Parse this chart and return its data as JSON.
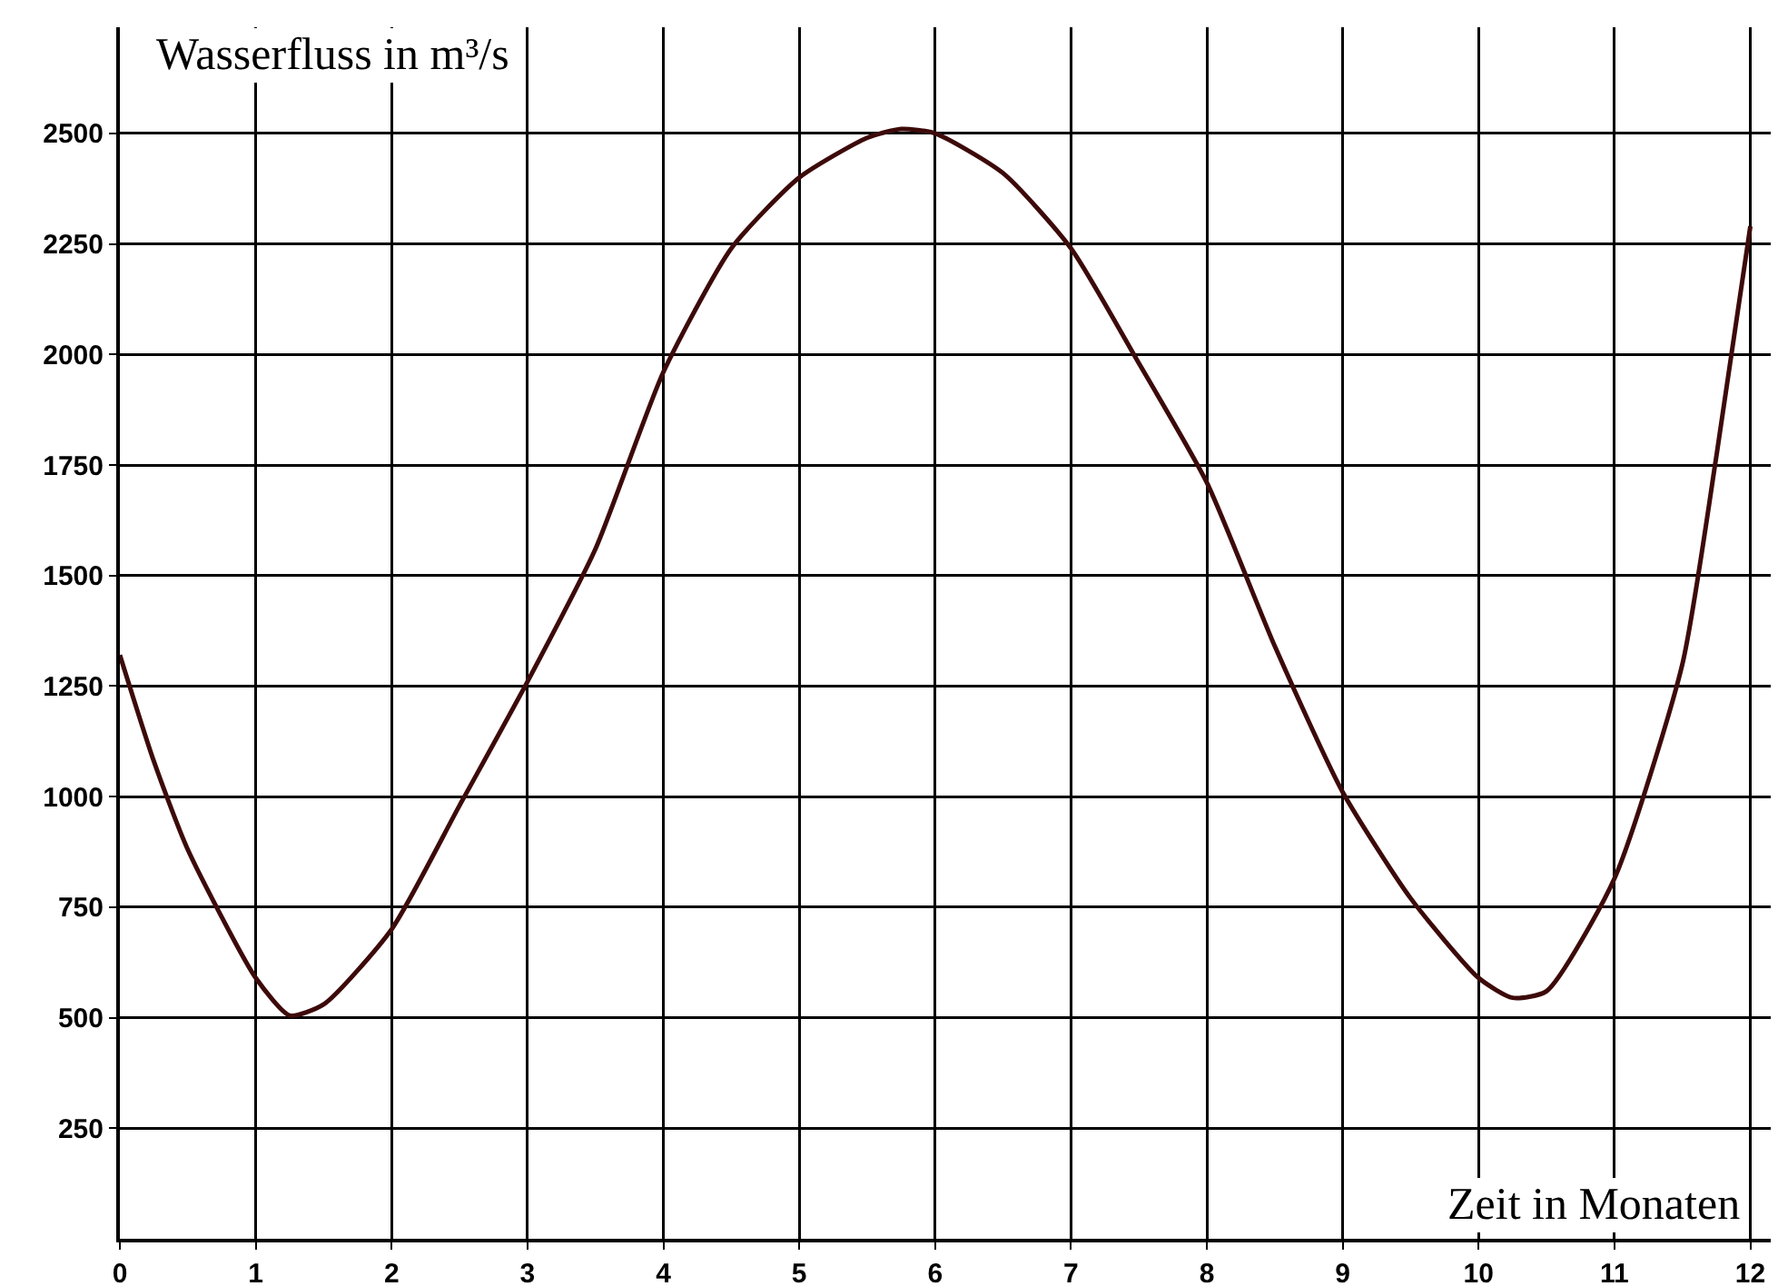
{
  "chart_data": {
    "type": "line",
    "xlabel": "Zeit in Monaten",
    "ylabel": "Wasserfluss in m³/s",
    "x": [
      0,
      0.25,
      0.5,
      1,
      1.25,
      1.5,
      2,
      2.5,
      3,
      3.5,
      4,
      4.5,
      5,
      5.5,
      5.75,
      6,
      6.5,
      7,
      7.5,
      8,
      8.5,
      9,
      9.5,
      10,
      10.25,
      10.5,
      11,
      11.5,
      11.75,
      12
    ],
    "series": [
      {
        "color": "#3d0a0a",
        "values": [
          1320,
          1080,
          880,
          590,
          505,
          530,
          700,
          980,
          1260,
          1560,
          1960,
          2240,
          2400,
          2490,
          2510,
          2500,
          2410,
          2240,
          1980,
          1710,
          1340,
          1010,
          770,
          590,
          545,
          560,
          815,
          1300,
          1770,
          2290
        ]
      }
    ],
    "xlim": [
      0,
      12.15
    ],
    "ylim": [
      0,
      2740
    ],
    "xticks": [
      0,
      1,
      2,
      3,
      4,
      5,
      6,
      7,
      8,
      9,
      10,
      11,
      12
    ],
    "yticks": [
      250,
      500,
      750,
      1000,
      1250,
      1500,
      1750,
      2000,
      2250,
      2500
    ],
    "grid": true,
    "marker": "none",
    "line_style": "solid"
  }
}
